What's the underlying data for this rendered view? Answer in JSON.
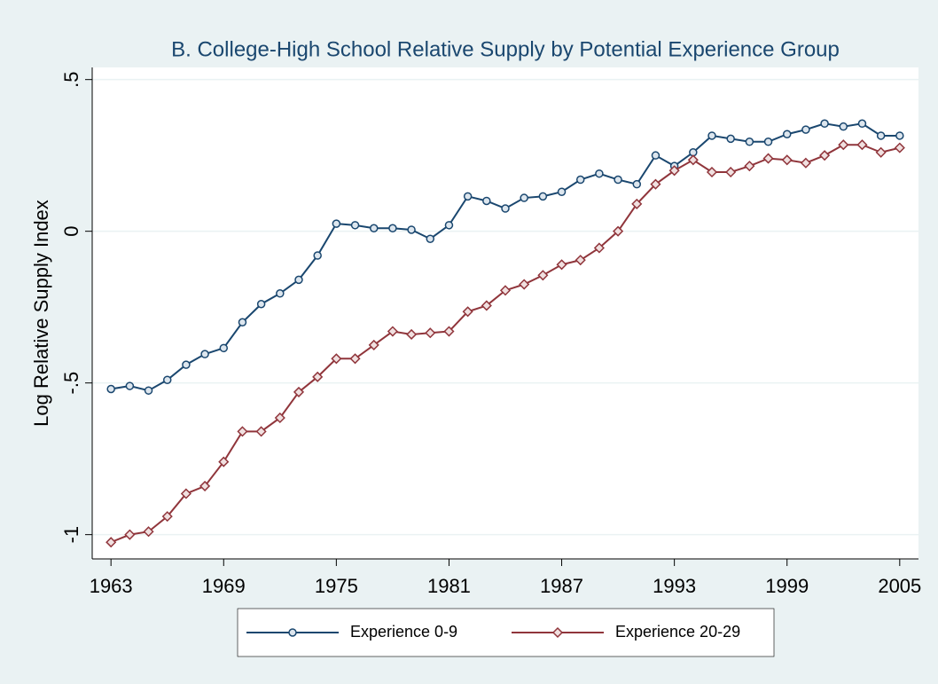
{
  "chart_data": {
    "type": "line",
    "title": "B. College-High School Relative Supply by Potential Experience Group",
    "y_label": "Log Relative Supply Index",
    "x": [
      1963,
      1964,
      1965,
      1966,
      1967,
      1968,
      1969,
      1970,
      1971,
      1972,
      1973,
      1974,
      1975,
      1976,
      1977,
      1978,
      1979,
      1980,
      1981,
      1982,
      1983,
      1984,
      1985,
      1986,
      1987,
      1988,
      1989,
      1990,
      1991,
      1992,
      1993,
      1994,
      1995,
      1996,
      1997,
      1998,
      1999,
      2000,
      2001,
      2002,
      2003,
      2004,
      2005
    ],
    "series": [
      {
        "name": "Experience 0-9",
        "color": "#1a476f",
        "marker": "circle",
        "values": [
          -0.52,
          -0.51,
          -0.525,
          -0.49,
          -0.44,
          -0.405,
          -0.385,
          -0.3,
          -0.24,
          -0.205,
          -0.16,
          -0.08,
          0.025,
          0.02,
          0.01,
          0.01,
          0.005,
          -0.025,
          0.02,
          0.115,
          0.1,
          0.075,
          0.11,
          0.115,
          0.13,
          0.17,
          0.19,
          0.17,
          0.155,
          0.25,
          0.215,
          0.26,
          0.315,
          0.305,
          0.295,
          0.295,
          0.32,
          0.335,
          0.355,
          0.345,
          0.355,
          0.315,
          0.315
        ]
      },
      {
        "name": "Experience 20-29",
        "color": "#90353b",
        "marker": "diamond",
        "values": [
          -1.025,
          -1.0,
          -0.99,
          -0.94,
          -0.865,
          -0.84,
          -0.76,
          -0.66,
          -0.66,
          -0.615,
          -0.53,
          -0.48,
          -0.42,
          -0.42,
          -0.375,
          -0.33,
          -0.34,
          -0.335,
          -0.33,
          -0.265,
          -0.245,
          -0.195,
          -0.175,
          -0.145,
          -0.11,
          -0.095,
          -0.055,
          0.0,
          0.09,
          0.155,
          0.2,
          0.235,
          0.195,
          0.195,
          0.215,
          0.24,
          0.235,
          0.225,
          0.25,
          0.285,
          0.285,
          0.26,
          0.275
        ]
      }
    ],
    "xlim": [
      1962,
      2006
    ],
    "xticks": [
      1963,
      1969,
      1975,
      1981,
      1987,
      1993,
      1999,
      2005
    ],
    "ylim": [
      -1.08,
      0.54
    ],
    "yticks": [
      -1,
      {
        "value": -0.5,
        "label": "-.5"
      },
      0,
      {
        "value": 0.5,
        "label": ".5"
      }
    ],
    "grid": true,
    "legend": "bottom"
  }
}
